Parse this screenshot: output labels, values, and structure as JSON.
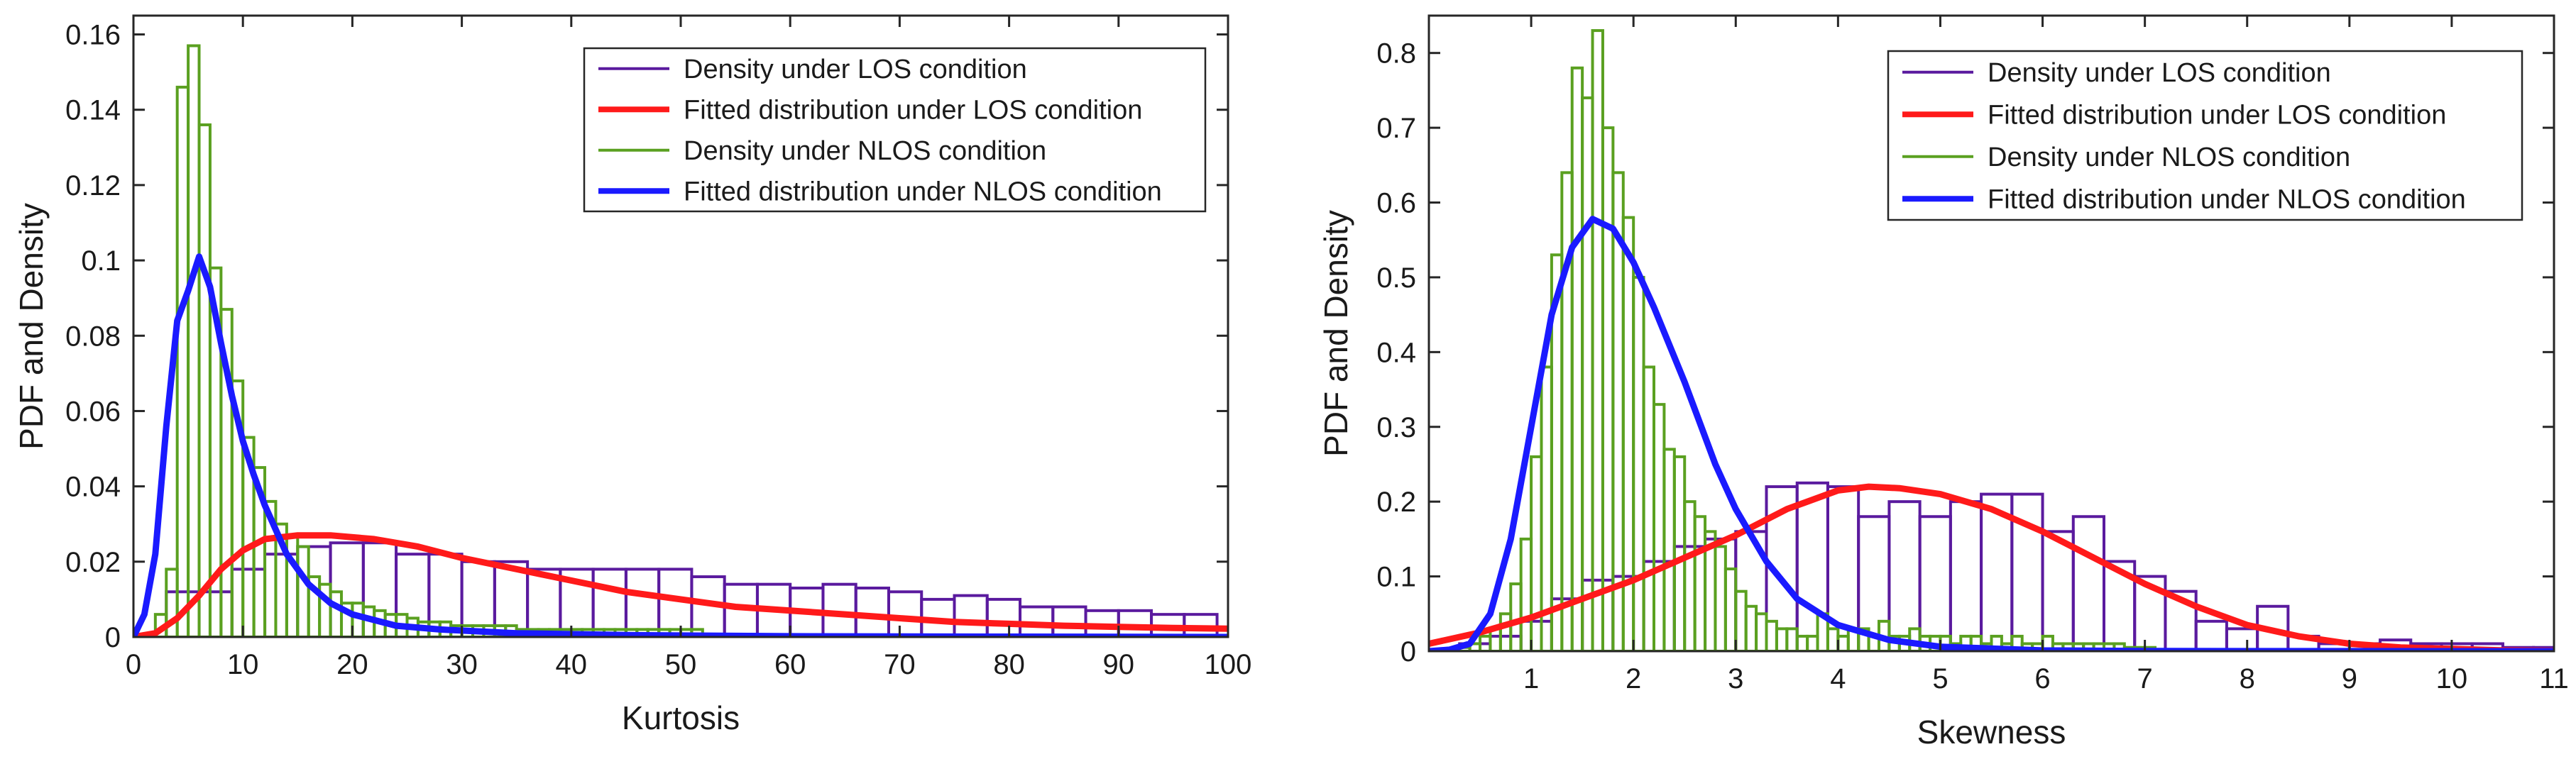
{
  "chart_data": [
    {
      "type": "bar",
      "xlabel": "Kurtosis",
      "ylabel": "PDF and Density",
      "xlim": [
        0,
        100
      ],
      "ylim": [
        0,
        0.165
      ],
      "xticks": [
        0,
        10,
        20,
        30,
        40,
        50,
        60,
        70,
        80,
        90,
        100
      ],
      "xtick_labels": [
        "0",
        "10",
        "20",
        "30",
        "40",
        "50",
        "60",
        "70",
        "80",
        "90",
        "100"
      ],
      "yticks": [
        0,
        0.02,
        0.04,
        0.06,
        0.08,
        0.1,
        0.12,
        0.14,
        0.16
      ],
      "ytick_labels": [
        "0",
        "0.02",
        "0.04",
        "0.06",
        "0.08",
        "0.1",
        "0.12",
        "0.14",
        "0.16"
      ],
      "legend_position": "top-right",
      "legend": [
        {
          "label": "Density under LOS condition",
          "color": "#5a1a9e"
        },
        {
          "label": "Fitted distribution under LOS condition",
          "color": "#ff1a1a"
        },
        {
          "label": "Density under NLOS condition",
          "color": "#5aa020"
        },
        {
          "label": "Fitted distribution under NLOS condition",
          "color": "#1a1aff"
        }
      ],
      "series": [
        {
          "name": "Density under LOS condition",
          "kind": "histogram",
          "color": "#5a1a9e",
          "bin_start": 3,
          "bin_width": 3,
          "values": [
            0.012,
            0.012,
            0.018,
            0.022,
            0.024,
            0.025,
            0.025,
            0.022,
            0.022,
            0.02,
            0.02,
            0.018,
            0.018,
            0.018,
            0.018,
            0.018,
            0.016,
            0.014,
            0.014,
            0.013,
            0.014,
            0.013,
            0.012,
            0.01,
            0.011,
            0.01,
            0.008,
            0.008,
            0.007,
            0.007,
            0.006,
            0.006
          ]
        },
        {
          "name": "Density under NLOS condition",
          "kind": "histogram",
          "color": "#5aa020",
          "bin_start": 2,
          "bin_width": 1,
          "values": [
            0.006,
            0.018,
            0.146,
            0.157,
            0.136,
            0.098,
            0.087,
            0.068,
            0.053,
            0.045,
            0.036,
            0.03,
            0.027,
            0.024,
            0.016,
            0.014,
            0.012,
            0.009,
            0.009,
            0.008,
            0.007,
            0.006,
            0.006,
            0.005,
            0.004,
            0.004,
            0.004,
            0.003,
            0.003,
            0.003,
            0.003,
            0.003,
            0.003,
            0.002,
            0.002,
            0.002,
            0.002,
            0.002,
            0.002,
            0.002,
            0.002,
            0.002,
            0.002,
            0.002,
            0.002,
            0.002,
            0.002,
            0.002,
            0.002,
            0.002
          ]
        },
        {
          "name": "Fitted distribution under LOS condition",
          "kind": "line",
          "color": "#ff1a1a",
          "x": [
            0,
            2,
            4,
            6,
            8,
            10,
            12,
            15,
            18,
            22,
            26,
            30,
            35,
            40,
            45,
            50,
            55,
            60,
            65,
            70,
            75,
            80,
            85,
            90,
            95,
            100
          ],
          "y": [
            0,
            0.001,
            0.005,
            0.011,
            0.018,
            0.023,
            0.026,
            0.027,
            0.027,
            0.026,
            0.024,
            0.021,
            0.018,
            0.015,
            0.012,
            0.01,
            0.008,
            0.007,
            0.006,
            0.005,
            0.004,
            0.0035,
            0.003,
            0.0027,
            0.0024,
            0.0022
          ]
        },
        {
          "name": "Fitted distribution under NLOS condition",
          "kind": "line",
          "color": "#1a1aff",
          "x": [
            0,
            1,
            2,
            3,
            4,
            5,
            6,
            7,
            8,
            9,
            10,
            11,
            12,
            14,
            16,
            18,
            20,
            24,
            28,
            35,
            45,
            60,
            80,
            100
          ],
          "y": [
            0,
            0.006,
            0.022,
            0.056,
            0.084,
            0.092,
            0.101,
            0.093,
            0.078,
            0.064,
            0.052,
            0.043,
            0.035,
            0.022,
            0.014,
            0.009,
            0.006,
            0.003,
            0.002,
            0.001,
            0.0005,
            0.0002,
            0.0001,
            0
          ]
        }
      ]
    },
    {
      "type": "bar",
      "xlabel": "Skewness",
      "ylabel": "PDF and Density",
      "xlim": [
        0,
        11
      ],
      "ylim": [
        0,
        0.85
      ],
      "xticks": [
        1,
        2,
        3,
        4,
        5,
        6,
        7,
        8,
        9,
        10,
        11
      ],
      "xtick_labels": [
        "1",
        "2",
        "3",
        "4",
        "5",
        "6",
        "7",
        "8",
        "9",
        "10",
        "11"
      ],
      "yticks": [
        0,
        0.1,
        0.2,
        0.3,
        0.4,
        0.5,
        0.6,
        0.7,
        0.8
      ],
      "ytick_labels": [
        "0",
        "0.1",
        "0.2",
        "0.3",
        "0.4",
        "0.5",
        "0.6",
        "0.7",
        "0.8"
      ],
      "legend_position": "top-right",
      "legend": [
        {
          "label": "Density under LOS condition",
          "color": "#5a1a9e"
        },
        {
          "label": "Fitted distribution under LOS condition",
          "color": "#ff1a1a"
        },
        {
          "label": "Density under NLOS condition",
          "color": "#5aa020"
        },
        {
          "label": "Fitted distribution under NLOS condition",
          "color": "#1a1aff"
        }
      ],
      "series": [
        {
          "name": "Density under LOS condition",
          "kind": "histogram",
          "color": "#5a1a9e",
          "bin_start": 0.3,
          "bin_width": 0.3,
          "values": [
            0.01,
            0.02,
            0.04,
            0.07,
            0.095,
            0.1,
            0.12,
            0.14,
            0.15,
            0.16,
            0.22,
            0.225,
            0.22,
            0.18,
            0.2,
            0.18,
            0.2,
            0.21,
            0.21,
            0.16,
            0.18,
            0.12,
            0.1,
            0.08,
            0.04,
            0.03,
            0.06,
            0.02,
            0.01,
            0.01,
            0.015,
            0.01,
            0.01,
            0.01,
            0.005,
            0.005
          ]
        },
        {
          "name": "Density under NLOS condition",
          "kind": "histogram",
          "color": "#5aa020",
          "bin_start": 0.3,
          "bin_width": 0.1,
          "values": [
            0.005,
            0.01,
            0.02,
            0.03,
            0.05,
            0.09,
            0.15,
            0.26,
            0.38,
            0.53,
            0.64,
            0.78,
            0.74,
            0.83,
            0.7,
            0.64,
            0.58,
            0.5,
            0.38,
            0.33,
            0.27,
            0.26,
            0.2,
            0.18,
            0.16,
            0.14,
            0.11,
            0.08,
            0.06,
            0.05,
            0.04,
            0.03,
            0.03,
            0.02,
            0.02,
            0.05,
            0.03,
            0.02,
            0.03,
            0.03,
            0.02,
            0.04,
            0.02,
            0.02,
            0.03,
            0.02,
            0.02,
            0.02,
            0.01,
            0.02,
            0.02,
            0.01,
            0.02,
            0.01,
            0.02,
            0.01,
            0.01,
            0.02,
            0.01,
            0.01,
            0.01,
            0.01,
            0.01,
            0.01,
            0.01,
            0.005,
            0.005,
            0.005
          ]
        },
        {
          "name": "Fitted distribution under LOS condition",
          "kind": "line",
          "color": "#ff1a1a",
          "x": [
            0,
            0.5,
            1,
            1.5,
            2,
            2.5,
            3,
            3.5,
            4,
            4.3,
            4.6,
            5,
            5.5,
            6,
            6.5,
            7,
            7.5,
            8,
            8.5,
            9,
            9.5,
            10,
            10.5,
            11
          ],
          "y": [
            0.01,
            0.025,
            0.045,
            0.07,
            0.095,
            0.125,
            0.155,
            0.19,
            0.215,
            0.22,
            0.218,
            0.21,
            0.19,
            0.16,
            0.125,
            0.09,
            0.06,
            0.035,
            0.02,
            0.01,
            0.005,
            0.003,
            0.001,
            0.0005
          ]
        },
        {
          "name": "Fitted distribution under NLOS condition",
          "kind": "line",
          "color": "#1a1aff",
          "x": [
            0,
            0.2,
            0.4,
            0.6,
            0.8,
            1.0,
            1.2,
            1.4,
            1.6,
            1.8,
            2.0,
            2.2,
            2.5,
            2.8,
            3.0,
            3.3,
            3.6,
            4.0,
            4.5,
            5.0,
            6.0,
            7.0,
            8.0,
            11.0
          ],
          "y": [
            0,
            0.002,
            0.01,
            0.05,
            0.15,
            0.3,
            0.45,
            0.54,
            0.578,
            0.565,
            0.52,
            0.46,
            0.36,
            0.25,
            0.19,
            0.12,
            0.07,
            0.035,
            0.015,
            0.006,
            0.001,
            0.0003,
            0.0001,
            0
          ]
        }
      ]
    }
  ]
}
